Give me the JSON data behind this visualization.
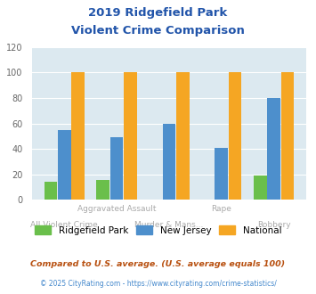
{
  "title_line1": "2019 Ridgefield Park",
  "title_line2": "Violent Crime Comparison",
  "categories": [
    "All Violent Crime",
    "Aggravated Assault",
    "Murder & Mans...",
    "Rape",
    "Robbery"
  ],
  "ridgefield_park": [
    14,
    16,
    0,
    0,
    19
  ],
  "new_jersey": [
    55,
    49,
    60,
    41,
    80
  ],
  "national": [
    100,
    100,
    100,
    100,
    100
  ],
  "colors": {
    "ridgefield_park": "#6abf4b",
    "new_jersey": "#4d8fcc",
    "national": "#f5a623"
  },
  "ylim": [
    0,
    120
  ],
  "yticks": [
    0,
    20,
    40,
    60,
    80,
    100,
    120
  ],
  "plot_bg": "#dce9f0",
  "legend_labels": [
    "Ridgefield Park",
    "New Jersey",
    "National"
  ],
  "footnote1": "Compared to U.S. average. (U.S. average equals 100)",
  "footnote2": "© 2025 CityRating.com - https://www.cityrating.com/crime-statistics/",
  "title_color": "#2255aa",
  "footnote1_color": "#b85010",
  "footnote2_color": "#4488cc",
  "tick_label_color": "#aaaaaa"
}
